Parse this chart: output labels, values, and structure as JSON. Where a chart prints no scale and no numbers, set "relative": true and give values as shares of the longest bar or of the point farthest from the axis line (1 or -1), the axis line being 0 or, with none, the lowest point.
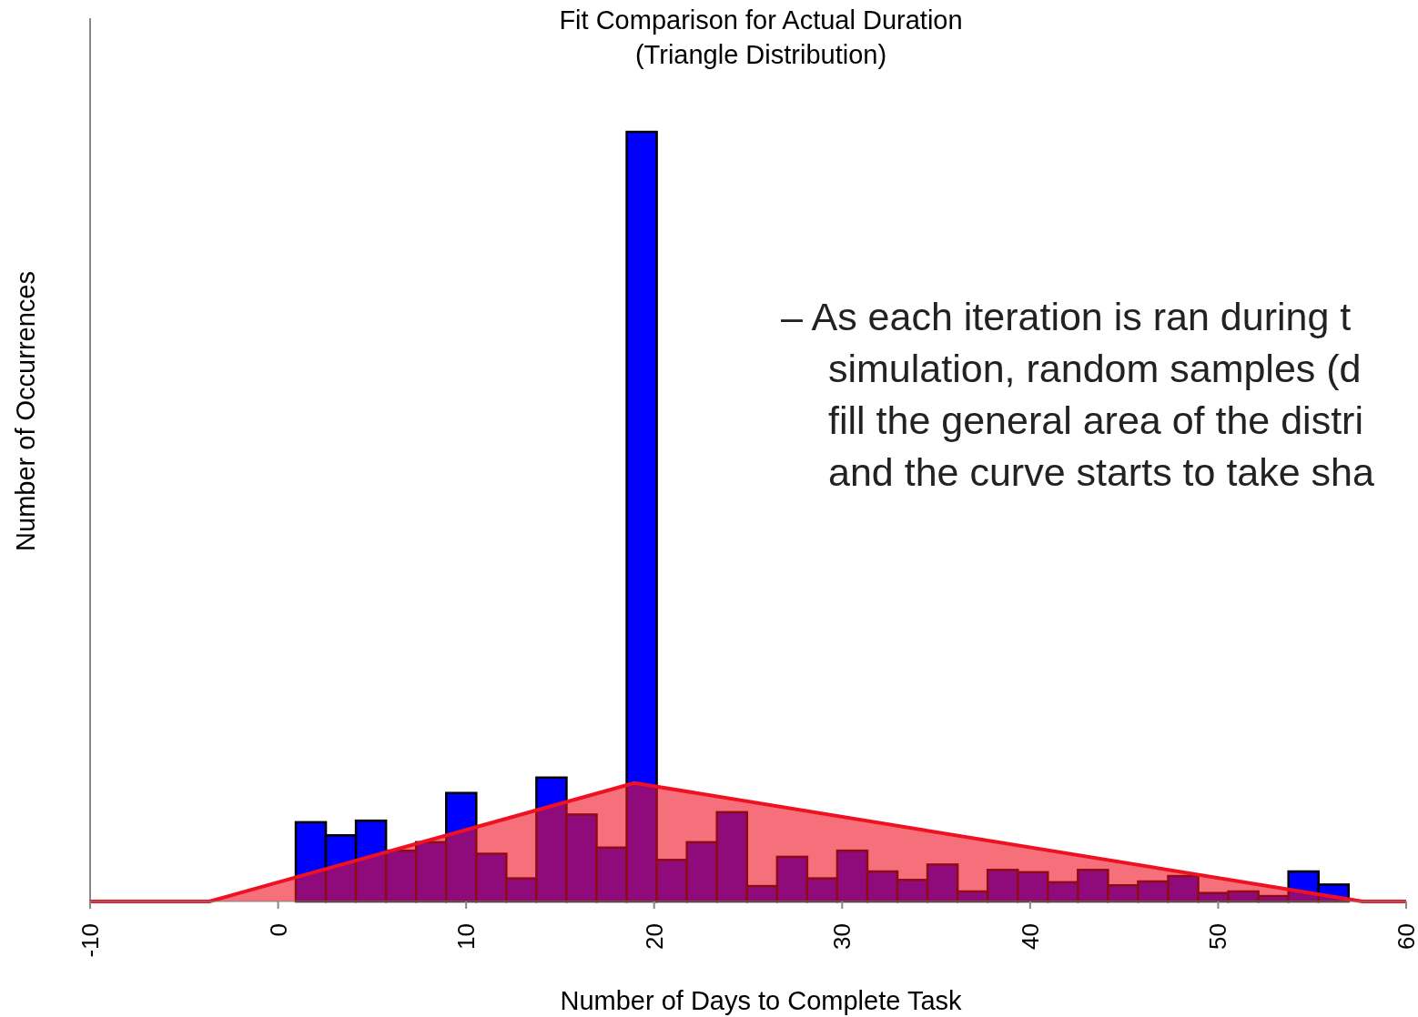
{
  "chart_data": {
    "type": "histogram",
    "title": "Fit Comparison for Actual Duration\n(Triangle Distribution)",
    "xlabel": "Number of Days to Complete Task",
    "ylabel": "Number of Occurrences",
    "relative": true,
    "xlim": [
      -10,
      60
    ],
    "xticks": [
      -10,
      0,
      10,
      20,
      30,
      40,
      50,
      60
    ],
    "color": "#0000ff",
    "bins": [
      0.94,
      2.54,
      4.14,
      5.74,
      7.34,
      8.94,
      10.54,
      12.14,
      13.74,
      15.34,
      16.94,
      18.54,
      20.14,
      21.74,
      23.34,
      24.94,
      26.54,
      28.14,
      29.74,
      31.34,
      32.94,
      34.54,
      36.14,
      37.74,
      39.34,
      40.94,
      42.54,
      44.14,
      45.74,
      47.34,
      48.94,
      50.54,
      52.14,
      53.74,
      55.34,
      56.94
    ],
    "values": [
      0.103,
      0.086,
      0.105,
      0.066,
      0.077,
      0.141,
      0.062,
      0.03,
      0.161,
      0.113,
      0.07,
      1,
      0.054,
      0.077,
      0.116,
      0.02,
      0.058,
      0.03,
      0.066,
      0.039,
      0.028,
      0.048,
      0.013,
      0.041,
      0.038,
      0.025,
      0.041,
      0.021,
      0.026,
      0.033,
      0.011,
      0.013,
      0.007,
      0.039,
      0.022
    ],
    "series": [
      {
        "type": "area",
        "color": "#ee1122",
        "x": [
          -10,
          -3.66,
          18.95,
          57.68,
          60
        ],
        "values": [
          0,
          0,
          0.154,
          0,
          0
        ]
      }
    ],
    "annotations": [
      "– As each iteration is ran during t",
      "simulation, random samples (d",
      "fill the general area of the distri",
      "and the curve starts to take sha"
    ]
  }
}
